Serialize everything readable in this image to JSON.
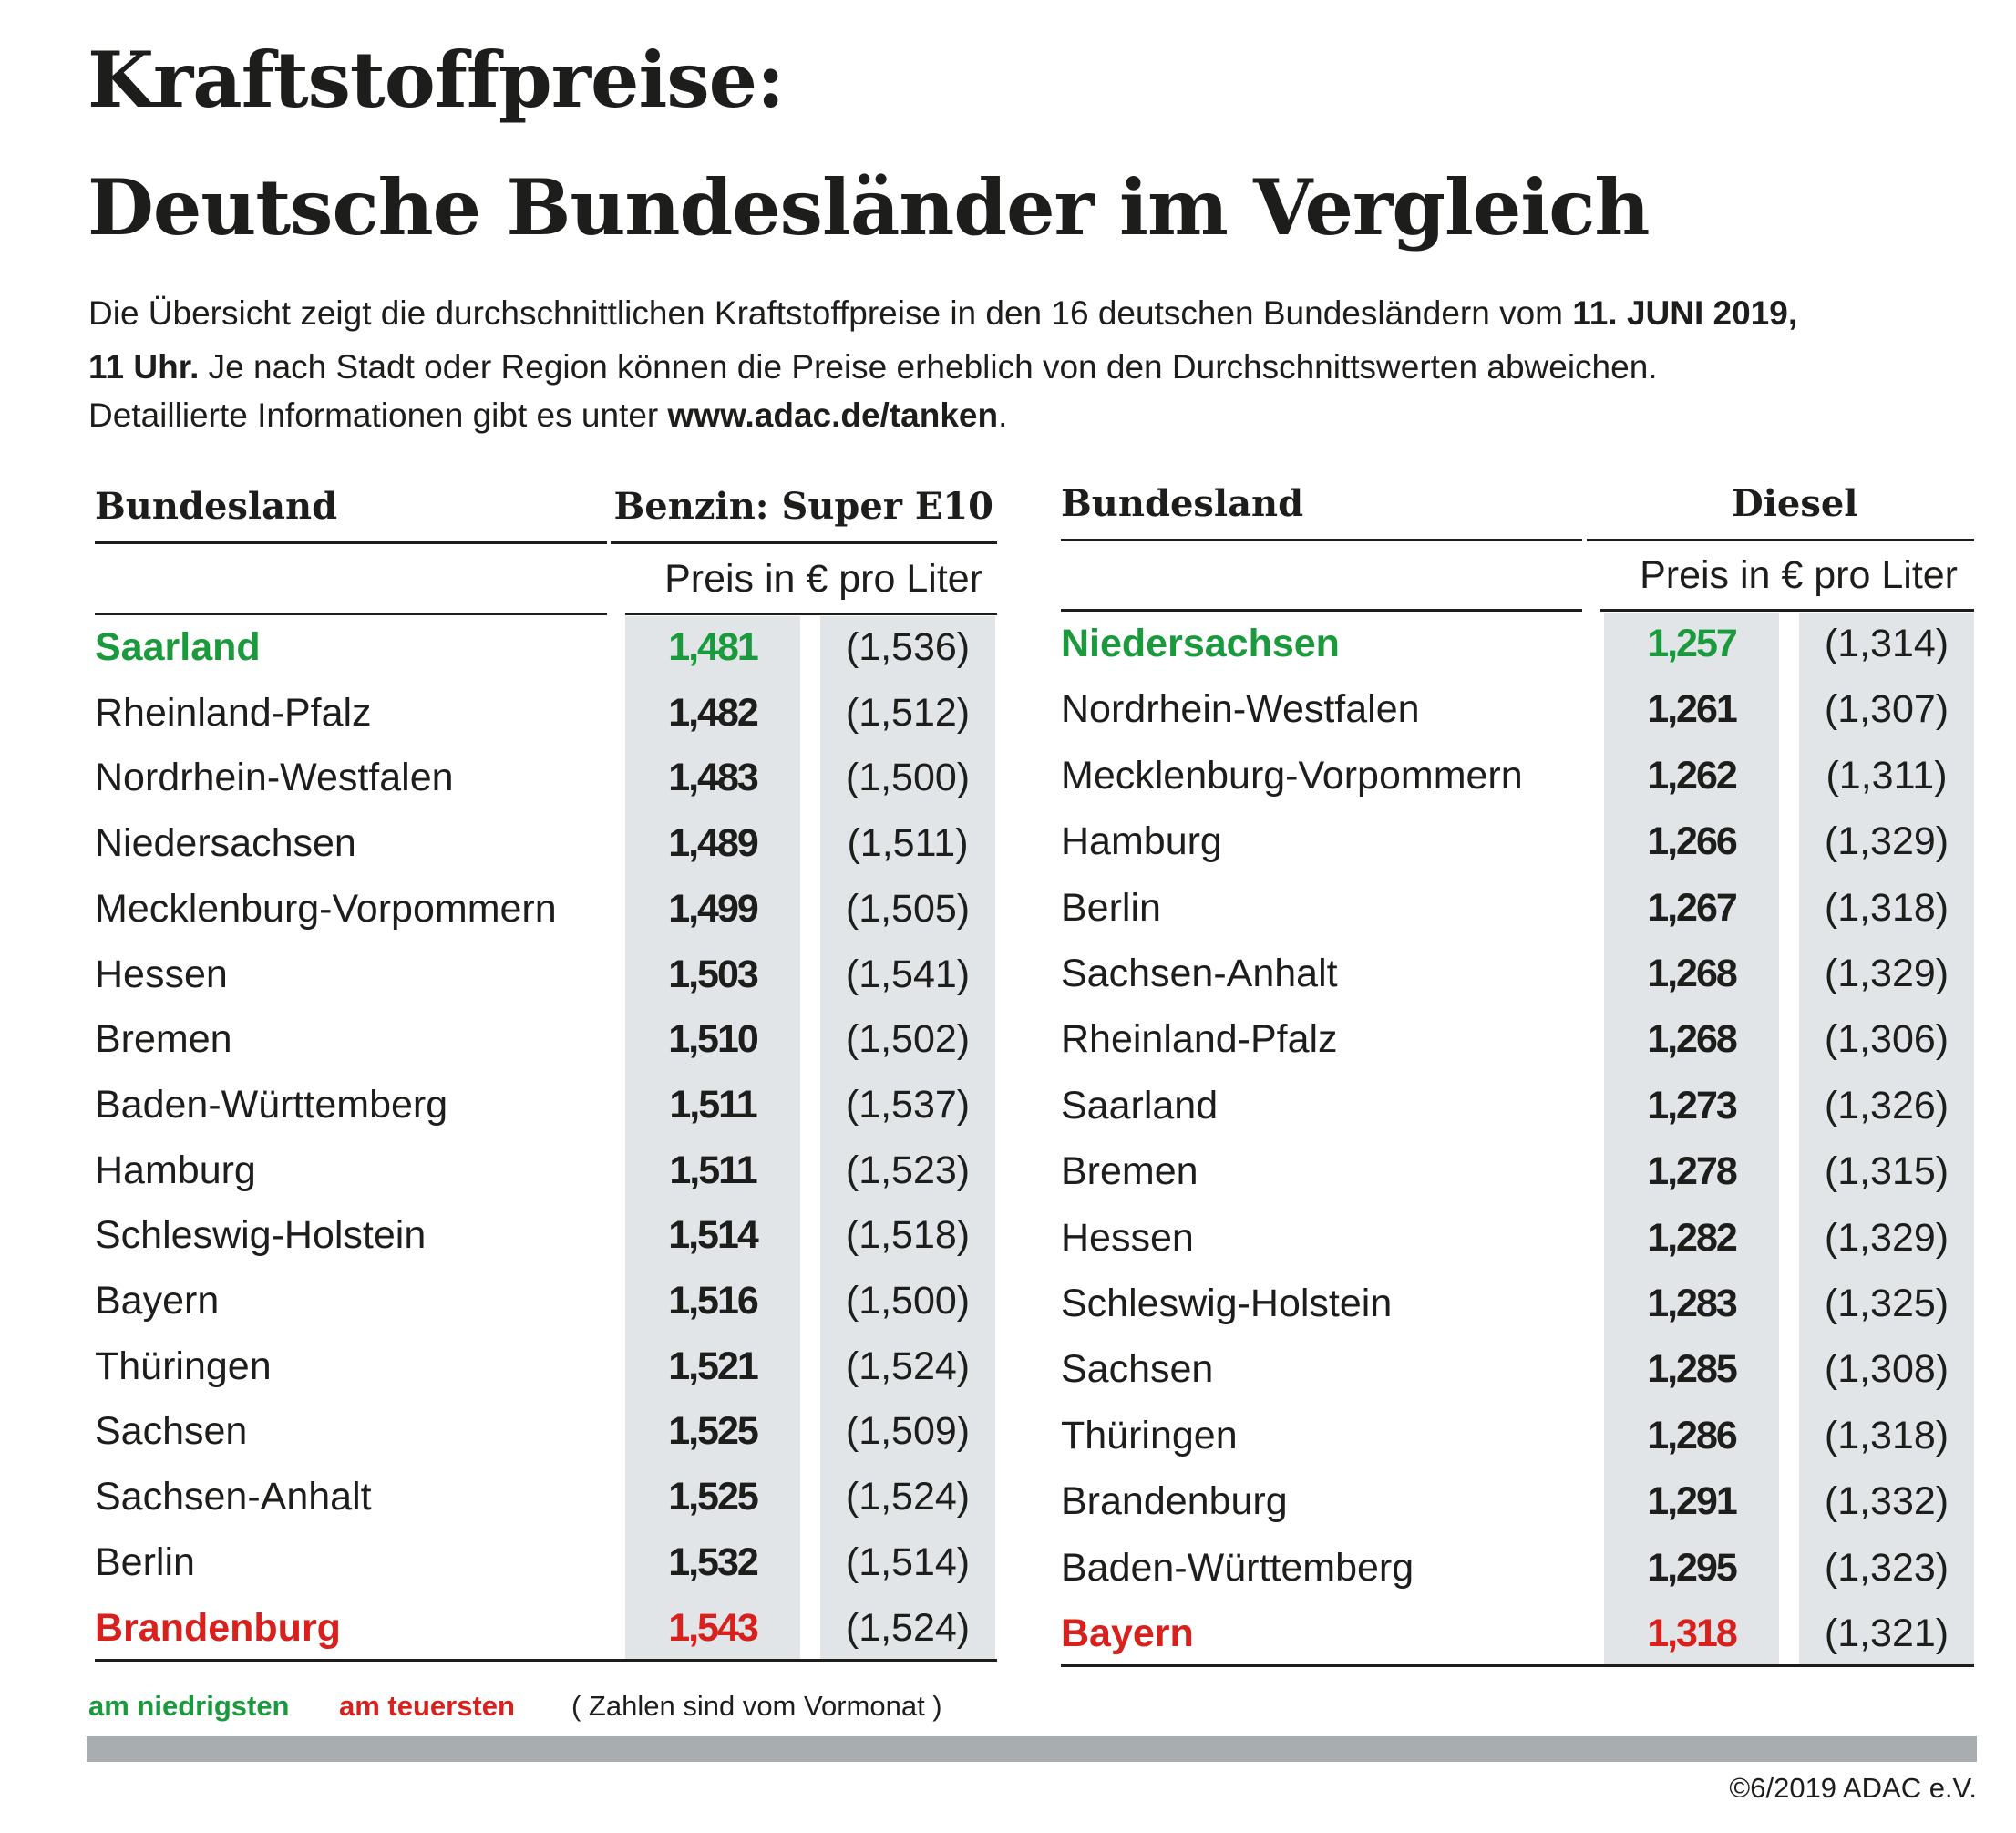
{
  "title": {
    "line1": "Kraftstoffpreise:",
    "line2": "Deutsche Bundesländer im Vergleich"
  },
  "intro": {
    "line1_a": "Die Übersicht zeigt die durchschnittlichen Kraftstoffpreise in den 16 deutschen Bundesländern vom ",
    "line1_b": "11. JUNI 2019,",
    "line2_a": "11 Uhr.",
    "line2_b": " Je nach Stadt oder Region können die Preise erheblich von den Durchschnittswerten abweichen.",
    "line3_a": "Detaillierte Informationen gibt es unter ",
    "line3_b": "www.adac.de/tanken",
    "line3_c": "."
  },
  "benzin": {
    "col_header": "Bundesland",
    "fuel_header": "Benzin:  Super E10",
    "unit": "Preis in € pro Liter",
    "rows": [
      {
        "state": "Saarland",
        "price": "1,481",
        "previous": "(1,536)",
        "mark": "low"
      },
      {
        "state": "Rheinland-Pfalz",
        "price": "1,482",
        "previous": "(1,512)"
      },
      {
        "state": "Nordrhein-Westfalen",
        "price": "1,483",
        "previous": "(1,500)"
      },
      {
        "state": "Niedersachsen",
        "price": "1,489",
        "previous": "(1,511)"
      },
      {
        "state": "Mecklenburg-Vorpommern",
        "price": "1,499",
        "previous": "(1,505)"
      },
      {
        "state": "Hessen",
        "price": "1,503",
        "previous": "(1,541)"
      },
      {
        "state": "Bremen",
        "price": "1,510",
        "previous": "(1,502)"
      },
      {
        "state": "Baden-Württemberg",
        "price": "1,511",
        "previous": "(1,537)"
      },
      {
        "state": "Hamburg",
        "price": "1,511",
        "previous": "(1,523)"
      },
      {
        "state": "Schleswig-Holstein",
        "price": "1,514",
        "previous": "(1,518)"
      },
      {
        "state": "Bayern",
        "price": "1,516",
        "previous": "(1,500)"
      },
      {
        "state": "Thüringen",
        "price": "1,521",
        "previous": "(1,524)"
      },
      {
        "state": "Sachsen",
        "price": "1,525",
        "previous": "(1,509)"
      },
      {
        "state": "Sachsen-Anhalt",
        "price": "1,525",
        "previous": "(1,524)"
      },
      {
        "state": "Berlin",
        "price": "1,532",
        "previous": "(1,514)"
      },
      {
        "state": "Brandenburg",
        "price": "1,543",
        "previous": "(1,524)",
        "mark": "high"
      }
    ]
  },
  "diesel": {
    "col_header": "Bundesland",
    "fuel_header": "Diesel",
    "unit": "Preis in € pro Liter",
    "rows": [
      {
        "state": "Niedersachsen",
        "price": "1,257",
        "previous": "(1,314)",
        "mark": "low"
      },
      {
        "state": "Nordrhein-Westfalen",
        "price": "1,261",
        "previous": "(1,307)"
      },
      {
        "state": "Mecklenburg-Vorpommern",
        "price": "1,262",
        "previous": "(1,311)"
      },
      {
        "state": "Hamburg",
        "price": "1,266",
        "previous": "(1,329)"
      },
      {
        "state": "Berlin",
        "price": "1,267",
        "previous": "(1,318)"
      },
      {
        "state": "Sachsen-Anhalt",
        "price": "1,268",
        "previous": "(1,329)"
      },
      {
        "state": "Rheinland-Pfalz",
        "price": "1,268",
        "previous": "(1,306)"
      },
      {
        "state": "Saarland",
        "price": "1,273",
        "previous": "(1,326)"
      },
      {
        "state": "Bremen",
        "price": "1,278",
        "previous": "(1,315)"
      },
      {
        "state": "Hessen",
        "price": "1,282",
        "previous": "(1,329)"
      },
      {
        "state": "Schleswig-Holstein",
        "price": "1,283",
        "previous": "(1,325)"
      },
      {
        "state": "Sachsen",
        "price": "1,285",
        "previous": "(1,308)"
      },
      {
        "state": "Thüringen",
        "price": "1,286",
        "previous": "(1,318)"
      },
      {
        "state": "Brandenburg",
        "price": "1,291",
        "previous": "(1,332)"
      },
      {
        "state": "Baden-Württemberg",
        "price": "1,295",
        "previous": "(1,323)"
      },
      {
        "state": "Bayern",
        "price": "1,318",
        "previous": "(1,321)",
        "mark": "high"
      }
    ]
  },
  "legend": {
    "lowest": "am niedrigsten",
    "highest": "am teuersten",
    "note": "( Zahlen sind vom Vormonat )"
  },
  "colors": {
    "lowest": "#1a9a3c",
    "highest": "#d8201d",
    "column_bg": "#e1e5e7",
    "footer_bar": "#a8adaf"
  },
  "copyright": "©6/2019 ADAC e.V."
}
